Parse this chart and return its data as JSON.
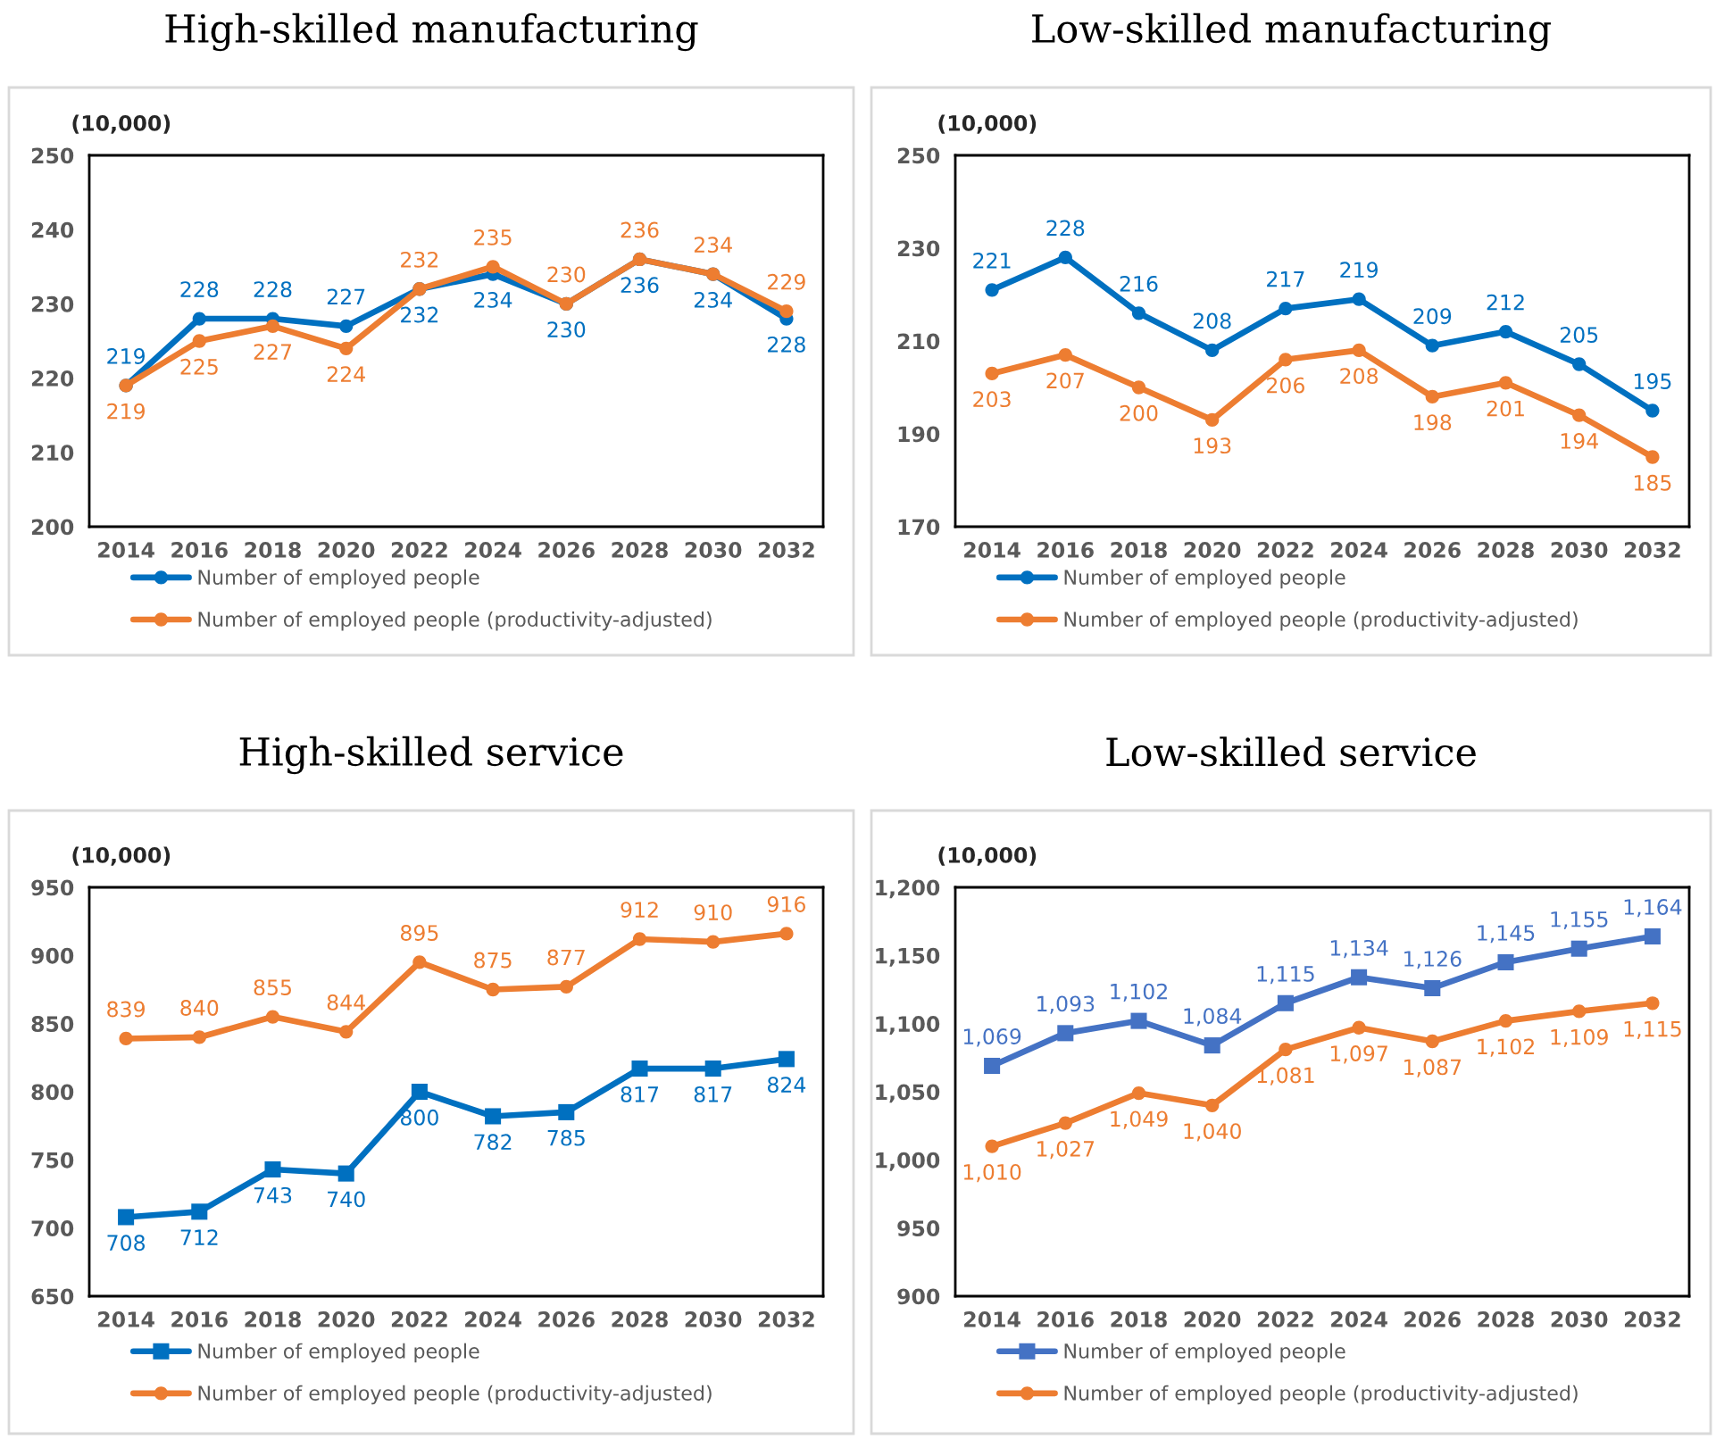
{
  "chart_data": [
    {
      "type": "line",
      "title": "High-skilled manufacturing",
      "ylabel": "(10,000)",
      "categories": [
        "2014",
        "2016",
        "2018",
        "2020",
        "2022",
        "2024",
        "2026",
        "2028",
        "2030",
        "2032"
      ],
      "ylim": [
        200,
        250
      ],
      "yticks": [
        200,
        210,
        220,
        230,
        240,
        250
      ],
      "data_labels": true,
      "legend": "bottom",
      "series": [
        {
          "name": "Number of employed people",
          "color": "#0070c0",
          "marker": "circle",
          "values": [
            219,
            228,
            228,
            227,
            232,
            234,
            230,
            236,
            234,
            228
          ]
        },
        {
          "name": "Number of employed people (productivity-adjusted)",
          "color": "#ed7d31",
          "marker": "circle",
          "values": [
            219,
            225,
            227,
            224,
            232,
            235,
            230,
            236,
            234,
            229
          ]
        }
      ]
    },
    {
      "type": "line",
      "title": "Low-skilled manufacturing",
      "ylabel": "(10,000)",
      "categories": [
        "2014",
        "2016",
        "2018",
        "2020",
        "2022",
        "2024",
        "2026",
        "2028",
        "2030",
        "2032"
      ],
      "ylim": [
        170,
        250
      ],
      "yticks": [
        170,
        190,
        210,
        230,
        250
      ],
      "data_labels": true,
      "legend": "bottom",
      "series": [
        {
          "name": "Number of employed people",
          "color": "#0070c0",
          "marker": "circle",
          "values": [
            221,
            228,
            216,
            208,
            217,
            219,
            209,
            212,
            205,
            195
          ]
        },
        {
          "name": "Number of employed people (productivity-adjusted)",
          "color": "#ed7d31",
          "marker": "circle",
          "values": [
            203,
            207,
            200,
            193,
            206,
            208,
            198,
            201,
            194,
            185
          ]
        }
      ]
    },
    {
      "type": "line",
      "title": "High-skilled service",
      "ylabel": "(10,000)",
      "categories": [
        "2014",
        "2016",
        "2018",
        "2020",
        "2022",
        "2024",
        "2026",
        "2028",
        "2030",
        "2032"
      ],
      "ylim": [
        650,
        950
      ],
      "yticks": [
        650,
        700,
        750,
        800,
        850,
        900,
        950
      ],
      "data_labels": true,
      "legend": "bottom",
      "series": [
        {
          "name": "Number of employed people",
          "color": "#0070c0",
          "marker": "square",
          "values": [
            708,
            712,
            743,
            740,
            800,
            782,
            785,
            817,
            817,
            824
          ]
        },
        {
          "name": "Number of employed people (productivity-adjusted)",
          "color": "#ed7d31",
          "marker": "circle",
          "values": [
            839,
            840,
            855,
            844,
            895,
            875,
            877,
            912,
            910,
            916
          ]
        }
      ]
    },
    {
      "type": "line",
      "title": "Low-skilled service",
      "ylabel": "(10,000)",
      "categories": [
        "2014",
        "2016",
        "2018",
        "2020",
        "2022",
        "2024",
        "2026",
        "2028",
        "2030",
        "2032"
      ],
      "ylim": [
        900,
        1200
      ],
      "yticks": [
        900,
        950,
        {
          "value": 1000,
          "label": "1,000"
        },
        {
          "value": 1050,
          "label": "1,050"
        },
        {
          "value": 1100,
          "label": "1,100"
        },
        {
          "value": 1150,
          "label": "1,150"
        },
        {
          "value": 1200,
          "label": "1,200"
        }
      ],
      "legend": "bottom",
      "series": [
        {
          "name": "Number of employed people",
          "color": "#4472c4",
          "marker": "square",
          "values": [
            1069,
            1093,
            1102,
            1084,
            1115,
            1134,
            1126,
            1145,
            1155,
            1164
          ],
          "value_labels": [
            "1,069",
            "1,093",
            "1,102",
            "1,084",
            "1,115",
            "1,134",
            "1,126",
            "1,145",
            "1,155",
            "1,164"
          ]
        },
        {
          "name": "Number of employed people (productivity-adjusted)",
          "color": "#ed7d31",
          "marker": "circle",
          "values": [
            1010,
            1027,
            1049,
            1040,
            1081,
            1097,
            1087,
            1102,
            1109,
            1115
          ],
          "value_labels": [
            "1,010",
            "1,027",
            "1,049",
            "1,040",
            "1,081",
            "1,097",
            "1,087",
            "1,102",
            "1,109",
            "1,115"
          ]
        }
      ]
    }
  ]
}
